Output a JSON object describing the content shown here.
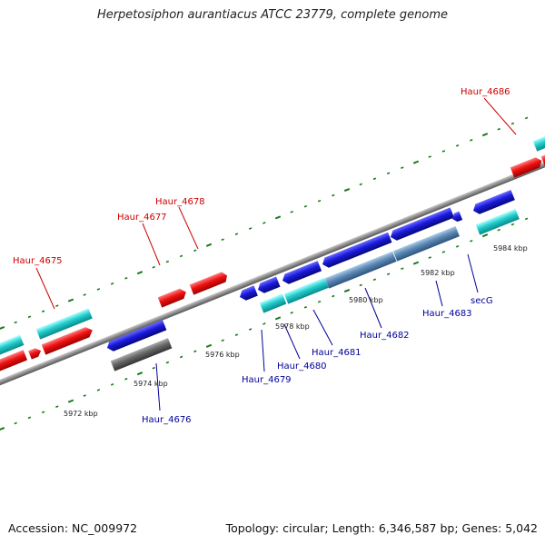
{
  "title": "Herpetosiphon aurantiacus ATCC 23779, complete genome",
  "footer": {
    "accession": "Accession: NC_009972",
    "summary": "Topology: circular; Length: 6,346,587 bp; Genes: 5,042"
  },
  "colors": {
    "backbone": "#8c8c8c",
    "tick": "#1a7a1a",
    "forward_label": "#cc0000",
    "reverse_label": "#000099",
    "gene_red": "#ee1111",
    "gene_cyan": "#22cccc",
    "gene_blue": "#1a1add",
    "gene_steel": "#5a87b4",
    "gene_gray": "#666666"
  },
  "scale_labels": [
    "5972 kbp",
    "5974 kbp",
    "5976 kbp",
    "5978 kbp",
    "5980 kbp",
    "5982 kbp",
    "5984 kbp"
  ],
  "forward_gene_labels": [
    "Haur_4675",
    "Haur_4677",
    "Haur_4678",
    "Haur_4686"
  ],
  "reverse_gene_labels": [
    "Haur_4676",
    "Haur_4679",
    "Haur_4680",
    "Haur_4681",
    "Haur_4682",
    "Haur_4683",
    "secG"
  ]
}
